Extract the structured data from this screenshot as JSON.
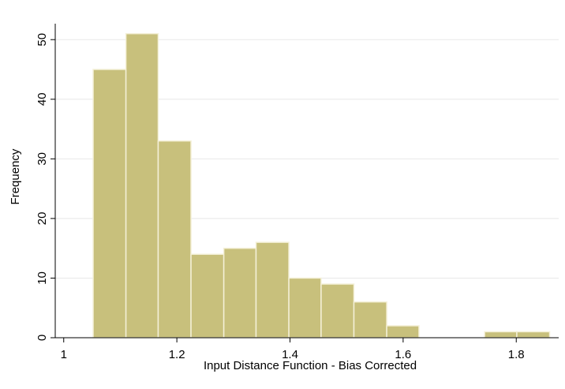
{
  "chart_data": {
    "type": "bar",
    "subtype": "histogram",
    "title": "",
    "xlabel": "Input Distance Function - Bias Corrected",
    "ylabel": "Frequency",
    "xlim": [
      0.985,
      1.875
    ],
    "ylim": [
      0,
      54
    ],
    "x_ticks": [
      1,
      1.2,
      1.4,
      1.6,
      1.8
    ],
    "x_tick_labels": [
      "1",
      "1.2",
      "1.4",
      "1.6",
      "1.8"
    ],
    "y_ticks": [
      0,
      10,
      20,
      30,
      40,
      50
    ],
    "y_tick_labels": [
      "0",
      "10",
      "20",
      "30",
      "40",
      "50"
    ],
    "grid": "horizontal",
    "bar_color": "#c8c07c",
    "bar_edge_color": "#f4f0d8",
    "bins": [
      {
        "x0": 1.052,
        "x1": 1.11,
        "count": 45
      },
      {
        "x0": 1.11,
        "x1": 1.167,
        "count": 51
      },
      {
        "x0": 1.167,
        "x1": 1.225,
        "count": 33
      },
      {
        "x0": 1.225,
        "x1": 1.283,
        "count": 14
      },
      {
        "x0": 1.283,
        "x1": 1.34,
        "count": 15
      },
      {
        "x0": 1.34,
        "x1": 1.398,
        "count": 16
      },
      {
        "x0": 1.398,
        "x1": 1.455,
        "count": 10
      },
      {
        "x0": 1.455,
        "x1": 1.513,
        "count": 9
      },
      {
        "x0": 1.513,
        "x1": 1.571,
        "count": 6
      },
      {
        "x0": 1.571,
        "x1": 1.628,
        "count": 2
      },
      {
        "x0": 1.628,
        "x1": 1.686,
        "count": 0
      },
      {
        "x0": 1.686,
        "x1": 1.744,
        "count": 0
      },
      {
        "x0": 1.744,
        "x1": 1.801,
        "count": 1
      },
      {
        "x0": 1.801,
        "x1": 1.859,
        "count": 1
      }
    ]
  }
}
